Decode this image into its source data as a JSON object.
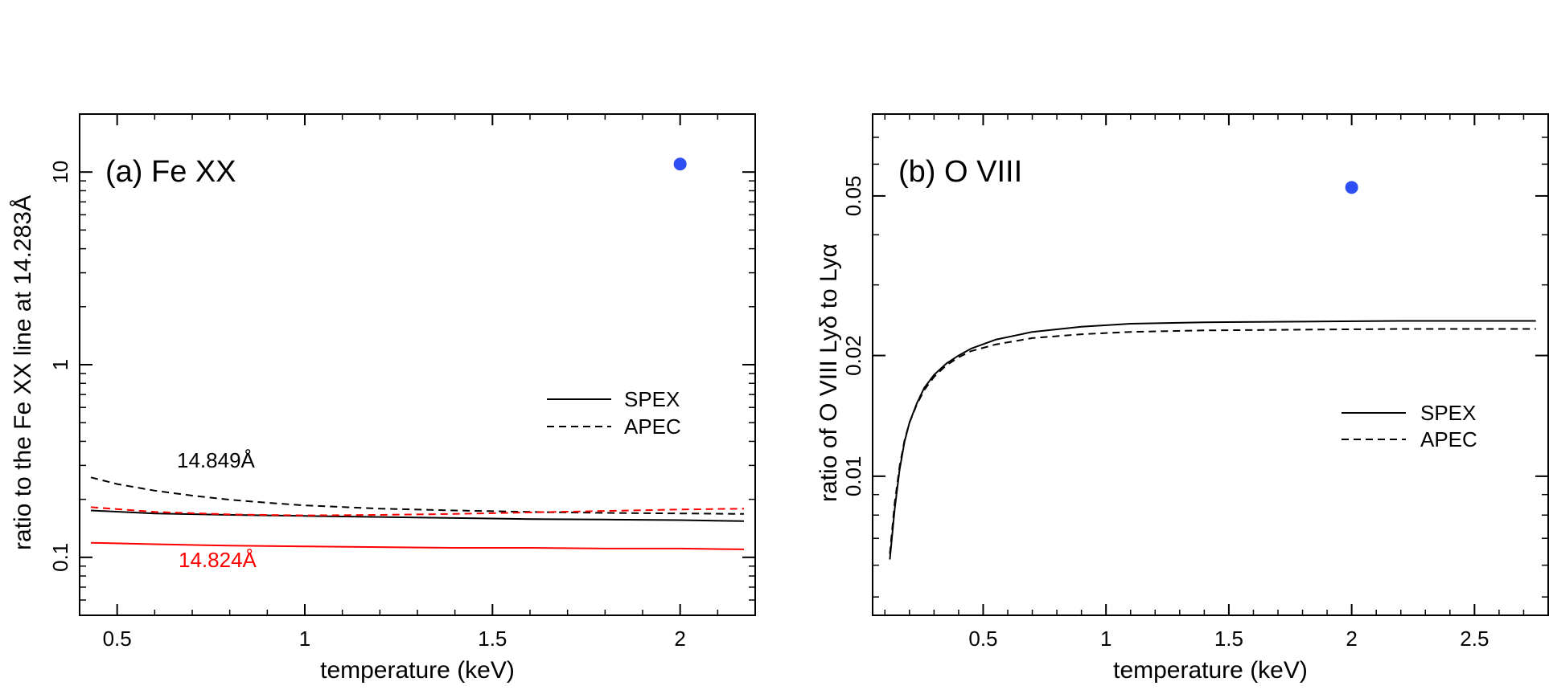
{
  "chart_data": [
    {
      "type": "line",
      "panel_label": "(a) Fe XX",
      "xlabel": "temperature (keV)",
      "ylabel": "ratio to the Fe XX line at 14.283Å",
      "xlim": [
        0.4,
        2.2
      ],
      "ylim": [
        0.05,
        20
      ],
      "yscale": "log",
      "x_ticks": [
        0.5,
        1,
        1.5,
        2
      ],
      "x_tick_labels": [
        "0.5",
        "1",
        "1.5",
        "2"
      ],
      "y_ticks": [
        0.1,
        1,
        10
      ],
      "y_tick_labels": [
        "0.1",
        "1",
        "10"
      ],
      "legend": {
        "position": "right",
        "entries": [
          {
            "label": "SPEX",
            "dash": "solid"
          },
          {
            "label": "APEC",
            "dash": "dashed"
          }
        ]
      },
      "annotations": [
        {
          "text": "14.849Å",
          "x": 0.65,
          "y": 0.28,
          "color": "#000000"
        },
        {
          "text": "14.824Å",
          "x": 0.65,
          "y": 0.093,
          "color": "#ff0000"
        }
      ],
      "marker": {
        "x": 2.0,
        "y": 11.0,
        "color": "#2e4ff5"
      },
      "series": [
        {
          "name": "14.849Å SPEX",
          "color": "#000000",
          "dash": "solid",
          "x": [
            0.43,
            0.6,
            0.8,
            1.0,
            1.2,
            1.4,
            1.6,
            1.8,
            2.0,
            2.17
          ],
          "values": [
            0.175,
            0.169,
            0.166,
            0.164,
            0.162,
            0.16,
            0.158,
            0.157,
            0.156,
            0.154
          ]
        },
        {
          "name": "14.849Å APEC",
          "color": "#000000",
          "dash": "dashed",
          "x": [
            0.43,
            0.5,
            0.6,
            0.7,
            0.8,
            0.9,
            1.0,
            1.2,
            1.4,
            1.6,
            1.8,
            2.0,
            2.17
          ],
          "values": [
            0.26,
            0.24,
            0.222,
            0.209,
            0.199,
            0.192,
            0.186,
            0.179,
            0.175,
            0.172,
            0.17,
            0.169,
            0.168
          ]
        },
        {
          "name": "14.824Å SPEX",
          "color": "#ff0000",
          "dash": "solid",
          "x": [
            0.43,
            0.6,
            0.8,
            1.0,
            1.2,
            1.4,
            1.6,
            1.8,
            2.0,
            2.17
          ],
          "values": [
            0.119,
            0.117,
            0.115,
            0.114,
            0.113,
            0.112,
            0.112,
            0.111,
            0.111,
            0.11
          ]
        },
        {
          "name": "14.824Å APEC",
          "color": "#ff0000",
          "dash": "dashed",
          "x": [
            0.43,
            0.6,
            0.8,
            1.0,
            1.2,
            1.4,
            1.6,
            1.8,
            2.0,
            2.17
          ],
          "values": [
            0.182,
            0.172,
            0.167,
            0.165,
            0.166,
            0.168,
            0.171,
            0.174,
            0.177,
            0.179
          ]
        }
      ]
    },
    {
      "type": "line",
      "panel_label": "(b) O VIII",
      "xlabel": "temperature (keV)",
      "ylabel": "ratio of O VIII Lyδ to Lyα",
      "xlim": [
        0.05,
        2.8
      ],
      "ylim": [
        0.0045,
        0.08
      ],
      "yscale": "log",
      "x_ticks": [
        0.5,
        1,
        1.5,
        2,
        2.5
      ],
      "x_tick_labels": [
        "0.5",
        "1",
        "1.5",
        "2",
        "2.5"
      ],
      "y_ticks": [
        0.01,
        0.02,
        0.05
      ],
      "y_tick_labels": [
        "0.01",
        "0.02",
        "0.05"
      ],
      "legend": {
        "position": "right",
        "entries": [
          {
            "label": "SPEX",
            "dash": "solid"
          },
          {
            "label": "APEC",
            "dash": "dashed"
          }
        ]
      },
      "annotations": [],
      "marker": {
        "x": 2.0,
        "y": 0.0525,
        "color": "#2e4ff5"
      },
      "series": [
        {
          "name": "SPEX",
          "color": "#000000",
          "dash": "solid",
          "x": [
            0.12,
            0.14,
            0.16,
            0.18,
            0.2,
            0.23,
            0.26,
            0.3,
            0.35,
            0.4,
            0.45,
            0.55,
            0.7,
            0.9,
            1.1,
            1.4,
            1.8,
            2.2,
            2.75
          ],
          "values": [
            0.0062,
            0.0083,
            0.0104,
            0.0122,
            0.0136,
            0.0152,
            0.0166,
            0.0179,
            0.0191,
            0.02,
            0.0208,
            0.0219,
            0.0229,
            0.0236,
            0.024,
            0.0242,
            0.0243,
            0.0244,
            0.0244
          ]
        },
        {
          "name": "APEC",
          "color": "#000000",
          "dash": "dashed",
          "x": [
            0.12,
            0.14,
            0.16,
            0.18,
            0.2,
            0.23,
            0.26,
            0.3,
            0.35,
            0.4,
            0.45,
            0.55,
            0.7,
            0.9,
            1.1,
            1.4,
            1.8,
            2.2,
            2.75
          ],
          "values": [
            0.0064,
            0.0086,
            0.0106,
            0.0123,
            0.0136,
            0.0151,
            0.0164,
            0.0177,
            0.0189,
            0.0198,
            0.0205,
            0.0213,
            0.0221,
            0.0226,
            0.0229,
            0.0231,
            0.0232,
            0.0233,
            0.0233
          ]
        }
      ]
    }
  ]
}
